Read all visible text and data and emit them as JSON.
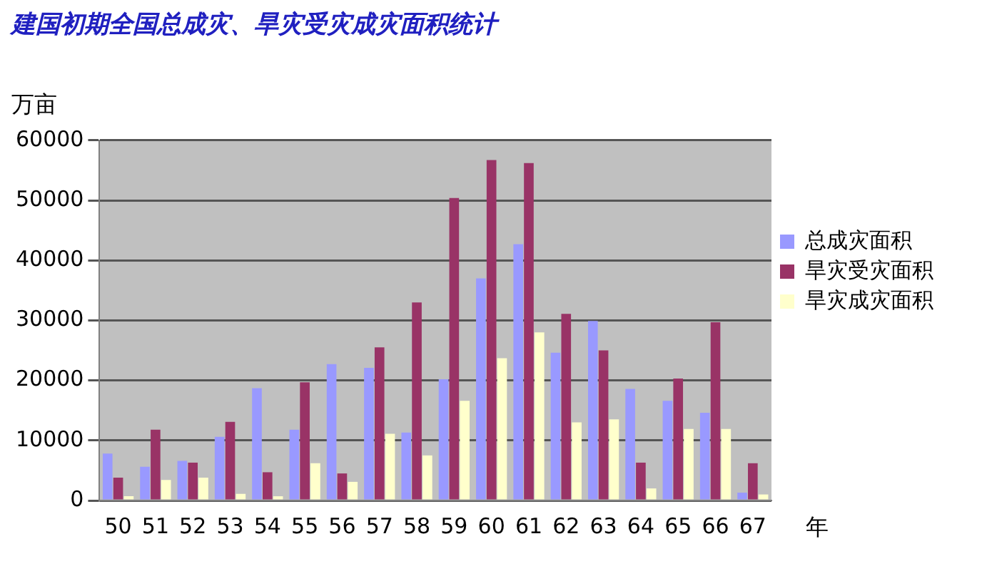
{
  "chart_data": {
    "type": "bar",
    "title": "建国初期全国总成灾、旱灾受灾成灾面积统计",
    "ylabel": "万亩",
    "xlabel": "年",
    "categories": [
      "50",
      "51",
      "52",
      "53",
      "54",
      "55",
      "56",
      "57",
      "58",
      "59",
      "60",
      "61",
      "62",
      "63",
      "64",
      "65",
      "66",
      "67"
    ],
    "series": [
      {
        "name": "总成灾面积",
        "color": "#9999ff",
        "values": [
          7800,
          5600,
          6600,
          10600,
          18700,
          11800,
          22700,
          22100,
          11300,
          20200,
          37000,
          42700,
          24600,
          29900,
          18600,
          16600,
          14600,
          1300
        ]
      },
      {
        "name": "旱灾受灾面积",
        "color": "#993366",
        "values": [
          3800,
          11800,
          6300,
          13100,
          4700,
          19700,
          4500,
          25500,
          33000,
          50400,
          56700,
          56200,
          31100,
          25000,
          6300,
          20300,
          29700,
          6200
        ]
      },
      {
        "name": "旱灾成灾面积",
        "color": "#ffffcc",
        "values": [
          700,
          3400,
          3800,
          1100,
          700,
          6200,
          3100,
          11100,
          7500,
          16600,
          23700,
          28000,
          13000,
          13500,
          2000,
          11900,
          11900,
          1000
        ]
      }
    ],
    "ylim": [
      0,
      60000
    ],
    "yticks": [
      0,
      10000,
      20000,
      30000,
      40000,
      50000,
      60000
    ],
    "grid": "y",
    "legend": "right"
  }
}
